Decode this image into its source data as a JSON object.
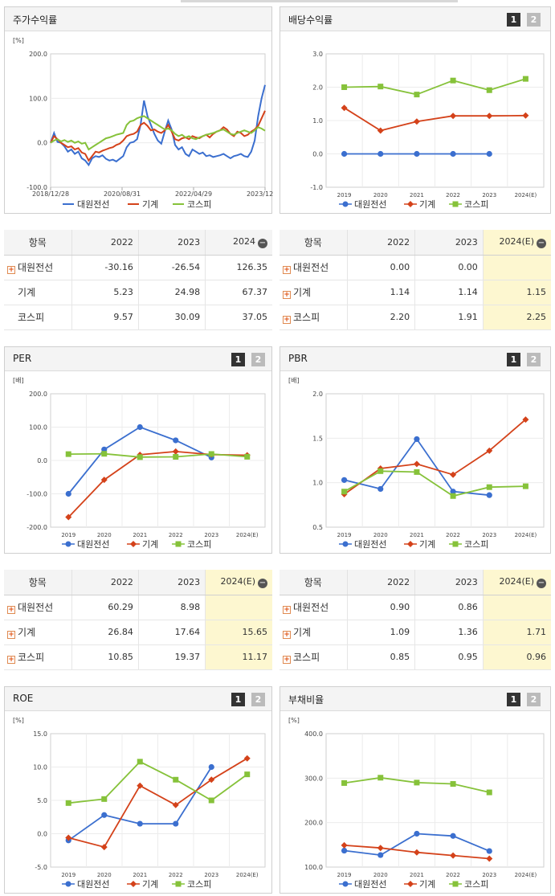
{
  "panels": {
    "stock": {
      "title": "주가수익률",
      "unit": "[%]"
    },
    "dividend": {
      "title": "배당수익률",
      "unit": ""
    },
    "per": {
      "title": "PER",
      "unit": "[배]"
    },
    "pbr": {
      "title": "PBR",
      "unit": "[배]"
    },
    "roe": {
      "title": "ROE",
      "unit": "[%]"
    },
    "debt": {
      "title": "부채비율",
      "unit": "[%]"
    }
  },
  "buttons": {
    "one": "1",
    "two": "2"
  },
  "legend": {
    "a": "대원전선",
    "b": "기계",
    "c": "코스피"
  },
  "colors": {
    "a": "#3b6fcf",
    "b": "#d4421a",
    "c": "#86c23a",
    "highlight": "#fdf7d0"
  },
  "tables": {
    "stock": {
      "header": [
        "항목",
        "2022",
        "2023",
        "2024"
      ],
      "rows": [
        {
          "label": "대원전선",
          "plus": true,
          "values": [
            "-30.16",
            "-26.54",
            "126.35"
          ]
        },
        {
          "label": "기계",
          "plus": false,
          "values": [
            "5.23",
            "24.98",
            "67.37"
          ]
        },
        {
          "label": "코스피",
          "plus": false,
          "values": [
            "9.57",
            "30.09",
            "37.05"
          ]
        }
      ]
    },
    "dividend": {
      "header": [
        "항목",
        "2022",
        "2023",
        "2024(E)"
      ],
      "rows": [
        {
          "label": "대원전선",
          "plus": true,
          "values": [
            "0.00",
            "0.00",
            ""
          ]
        },
        {
          "label": "기계",
          "plus": true,
          "values": [
            "1.14",
            "1.14",
            "1.15"
          ]
        },
        {
          "label": "코스피",
          "plus": true,
          "values": [
            "2.20",
            "1.91",
            "2.25"
          ]
        }
      ]
    },
    "per": {
      "header": [
        "항목",
        "2022",
        "2023",
        "2024(E)"
      ],
      "rows": [
        {
          "label": "대원전선",
          "plus": true,
          "values": [
            "60.29",
            "8.98",
            ""
          ]
        },
        {
          "label": "기계",
          "plus": true,
          "values": [
            "26.84",
            "17.64",
            "15.65"
          ]
        },
        {
          "label": "코스피",
          "plus": true,
          "values": [
            "10.85",
            "19.37",
            "11.17"
          ]
        }
      ]
    },
    "pbr": {
      "header": [
        "항목",
        "2022",
        "2023",
        "2024(E)"
      ],
      "rows": [
        {
          "label": "대원전선",
          "plus": true,
          "values": [
            "0.90",
            "0.86",
            ""
          ]
        },
        {
          "label": "기계",
          "plus": true,
          "values": [
            "1.09",
            "1.36",
            "1.71"
          ]
        },
        {
          "label": "코스피",
          "plus": true,
          "values": [
            "0.85",
            "0.95",
            "0.96"
          ]
        }
      ]
    }
  },
  "chart_data": [
    {
      "id": "stock",
      "type": "line",
      "title": "주가수익률",
      "ylabel": "[%]",
      "ylim": [
        -100,
        200
      ],
      "yticks": [
        "200.0",
        "100.0",
        "0.0",
        "-100.0"
      ],
      "xticks": [
        "2018/12/28",
        "2020/08/31",
        "2022/04/29",
        "2023/12/28"
      ],
      "series": [
        {
          "name": "대원전선",
          "values": [
            0,
            22,
            2,
            0,
            -8,
            -20,
            -15,
            -25,
            -20,
            -35,
            -40,
            -50,
            -35,
            -30,
            -32,
            -28,
            -36,
            -40,
            -38,
            -42,
            -36,
            -30,
            -10,
            0,
            2,
            8,
            40,
            95,
            60,
            40,
            20,
            5,
            -2,
            25,
            50,
            30,
            -5,
            -15,
            -10,
            -25,
            -30,
            -15,
            -20,
            -25,
            -22,
            -30,
            -28,
            -32,
            -30,
            -28,
            -25,
            -30,
            -35,
            -30,
            -28,
            -25,
            -30,
            -32,
            -20,
            5,
            60,
            100,
            130
          ]
        },
        {
          "name": "기계",
          "values": [
            0,
            15,
            8,
            0,
            -5,
            -10,
            -8,
            -15,
            -12,
            -22,
            -25,
            -40,
            -30,
            -20,
            -22,
            -18,
            -15,
            -12,
            -10,
            -5,
            -2,
            5,
            15,
            18,
            20,
            25,
            40,
            45,
            38,
            28,
            30,
            25,
            22,
            28,
            40,
            25,
            8,
            5,
            10,
            12,
            8,
            15,
            12,
            10,
            15,
            18,
            12,
            20,
            25,
            28,
            35,
            30,
            20,
            15,
            25,
            22,
            15,
            18,
            25,
            30,
            38,
            55,
            72
          ]
        },
        {
          "name": "코스피",
          "values": [
            0,
            5,
            8,
            3,
            6,
            2,
            5,
            0,
            3,
            -2,
            0,
            -15,
            -10,
            -5,
            0,
            5,
            10,
            12,
            15,
            18,
            20,
            22,
            40,
            48,
            50,
            55,
            58,
            60,
            55,
            50,
            45,
            40,
            35,
            30,
            32,
            28,
            20,
            15,
            18,
            12,
            15,
            10,
            8,
            12,
            15,
            18,
            20,
            22,
            25,
            28,
            30,
            25,
            20,
            18,
            22,
            25,
            28,
            25,
            22,
            28,
            35,
            32,
            27
          ]
        }
      ]
    },
    {
      "id": "dividend",
      "type": "line",
      "title": "배당수익률",
      "ylim": [
        -1,
        3
      ],
      "yticks": [
        "3.0",
        "2.0",
        "1.0",
        "0.0",
        "-1.0"
      ],
      "categories": [
        "2019",
        "2020",
        "2021",
        "2022",
        "2023",
        "2024(E)"
      ],
      "series": [
        {
          "name": "대원전선",
          "values": [
            0,
            0,
            0,
            0,
            0,
            null
          ]
        },
        {
          "name": "기계",
          "values": [
            1.38,
            0.7,
            0.97,
            1.14,
            1.14,
            1.15
          ]
        },
        {
          "name": "코스피",
          "values": [
            2.0,
            2.02,
            1.78,
            2.2,
            1.91,
            2.25
          ]
        }
      ]
    },
    {
      "id": "per",
      "type": "line",
      "title": "PER",
      "ylabel": "[배]",
      "ylim": [
        -200,
        200
      ],
      "yticks": [
        "200.0",
        "100.0",
        "0.0",
        "-100.0",
        "-200.0"
      ],
      "categories": [
        "2019",
        "2020",
        "2021",
        "2022",
        "2023",
        "2024(E)"
      ],
      "series": [
        {
          "name": "대원전선",
          "values": [
            -100,
            33,
            100,
            60.29,
            8.98,
            null
          ]
        },
        {
          "name": "기계",
          "values": [
            -170,
            -58,
            17,
            26.84,
            17.64,
            15.65
          ]
        },
        {
          "name": "코스피",
          "values": [
            19,
            20,
            10,
            10.85,
            19.37,
            11.17
          ]
        }
      ]
    },
    {
      "id": "pbr",
      "type": "line",
      "title": "PBR",
      "ylabel": "[배]",
      "ylim": [
        0.5,
        2.0
      ],
      "yticks": [
        "2.0",
        "1.5",
        "1.0",
        "0.5"
      ],
      "categories": [
        "2019",
        "2020",
        "2021",
        "2022",
        "2023",
        "2024(E)"
      ],
      "series": [
        {
          "name": "대원전선",
          "values": [
            1.03,
            0.93,
            1.49,
            0.9,
            0.86,
            null
          ]
        },
        {
          "name": "기계",
          "values": [
            0.87,
            1.16,
            1.21,
            1.09,
            1.36,
            1.71
          ]
        },
        {
          "name": "코스피",
          "values": [
            0.9,
            1.13,
            1.12,
            0.85,
            0.95,
            0.96
          ]
        }
      ]
    },
    {
      "id": "roe",
      "type": "line",
      "title": "ROE",
      "ylabel": "[%]",
      "ylim": [
        -5,
        15
      ],
      "yticks": [
        "15.0",
        "10.0",
        "5.0",
        "0.0",
        "-5.0"
      ],
      "categories": [
        "2019",
        "2020",
        "2021",
        "2022",
        "2023",
        "2024(E)"
      ],
      "series": [
        {
          "name": "대원전선",
          "values": [
            -1.0,
            2.8,
            1.5,
            1.5,
            10.0,
            null
          ]
        },
        {
          "name": "기계",
          "values": [
            -0.6,
            -2.0,
            7.2,
            4.3,
            8.1,
            11.3
          ]
        },
        {
          "name": "코스피",
          "values": [
            4.6,
            5.2,
            10.8,
            8.1,
            5.0,
            8.9
          ]
        }
      ]
    },
    {
      "id": "debt",
      "type": "line",
      "title": "부채비율",
      "ylabel": "[%]",
      "ylim": [
        100,
        400
      ],
      "yticks": [
        "400.0",
        "300.0",
        "200.0",
        "100.0"
      ],
      "categories": [
        "2019",
        "2020",
        "2021",
        "2022",
        "2023",
        "2024(E)"
      ],
      "series": [
        {
          "name": "대원전선",
          "values": [
            137,
            127,
            175,
            170,
            136,
            null
          ]
        },
        {
          "name": "기계",
          "values": [
            149,
            143,
            133,
            126,
            119,
            null
          ]
        },
        {
          "name": "코스피",
          "values": [
            289,
            301,
            290,
            287,
            268,
            null
          ]
        }
      ]
    }
  ]
}
